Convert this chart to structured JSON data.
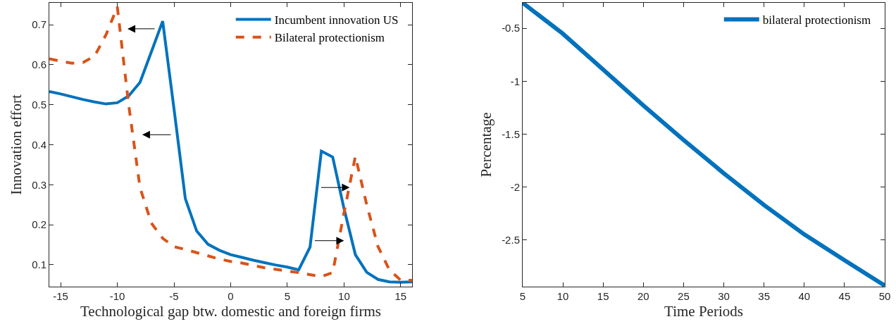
{
  "chart_data": [
    {
      "type": "line",
      "xlabel": "Technological gap btw. domestic and foreign firms",
      "ylabel": "Innovation effort",
      "x": [
        -16,
        -15,
        -14,
        -13,
        -12,
        -11,
        -10,
        -9,
        -8,
        -7,
        -6,
        -5,
        -4,
        -3,
        -2,
        -1,
        0,
        1,
        2,
        3,
        4,
        5,
        6,
        7,
        8,
        9,
        10,
        11,
        12,
        13,
        14,
        15,
        16
      ],
      "series": [
        {
          "name": "Incumbent innovation US",
          "color": "#0072bd",
          "line_style": "solid",
          "values": [
            0.533,
            0.527,
            0.52,
            0.513,
            0.507,
            0.502,
            0.505,
            0.522,
            0.556,
            0.632,
            0.709,
            0.49,
            0.265,
            0.184,
            0.151,
            0.136,
            0.125,
            0.118,
            0.111,
            0.105,
            0.099,
            0.094,
            0.087,
            0.144,
            0.384,
            0.369,
            0.24,
            0.125,
            0.081,
            0.063,
            0.057,
            0.056,
            0.057
          ]
        },
        {
          "name": "Bilateral protectionism",
          "color": "#d95319",
          "line_style": "dashed",
          "values": [
            0.615,
            0.609,
            0.604,
            0.606,
            0.622,
            0.675,
            0.745,
            0.5,
            0.293,
            0.204,
            0.166,
            0.145,
            0.138,
            0.13,
            0.122,
            0.114,
            0.108,
            0.104,
            0.098,
            0.092,
            0.088,
            0.084,
            0.08,
            0.075,
            0.07,
            0.08,
            0.23,
            0.371,
            0.25,
            0.145,
            0.087,
            0.061,
            0.061
          ]
        }
      ],
      "xlim": [
        -16,
        16
      ],
      "xticks": [
        -15,
        -10,
        -5,
        0,
        5,
        10,
        15
      ],
      "ylim": [
        0.045,
        0.755
      ],
      "yticks": [
        0.1,
        0.2,
        0.3,
        0.4,
        0.5,
        0.6,
        0.7
      ],
      "legend": "top right"
    },
    {
      "type": "line",
      "xlabel": "Time Periods",
      "ylabel": "Percentage",
      "x": [
        5,
        10,
        15,
        20,
        25,
        30,
        35,
        40,
        45,
        50
      ],
      "series": [
        {
          "name": "bilateral protectionism",
          "color": "#0072bd",
          "line_style": "solid",
          "values": [
            -0.26,
            -0.552,
            -0.89,
            -1.229,
            -1.555,
            -1.87,
            -2.17,
            -2.447,
            -2.69,
            -2.93
          ]
        }
      ],
      "xlim": [
        5,
        50
      ],
      "xticks": [
        5,
        10,
        15,
        20,
        25,
        30,
        35,
        40,
        45,
        50
      ],
      "ylim": [
        -2.94,
        -0.26
      ],
      "yticks": [
        -2.5,
        -2,
        -1.5,
        -1,
        -0.5
      ],
      "legend": "top right"
    }
  ]
}
